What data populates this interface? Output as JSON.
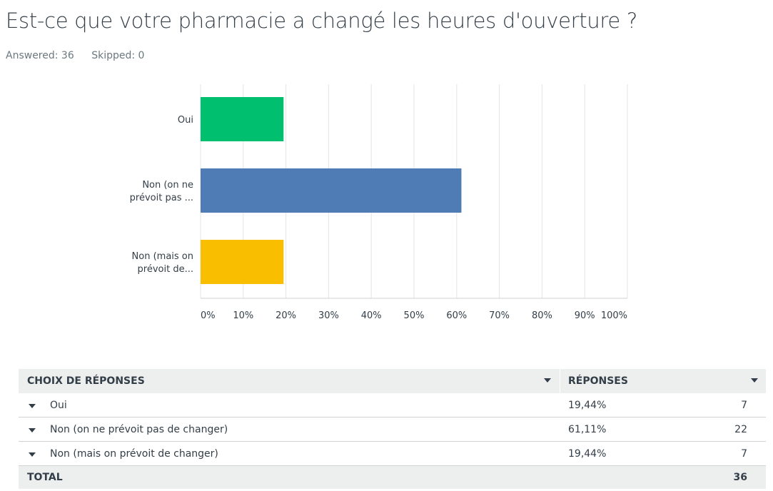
{
  "question": {
    "title": "Est-ce que votre pharmacie a changé les heures d'ouverture ?",
    "answered": "Answered: 36",
    "skipped": "Skipped: 0"
  },
  "chart_data": {
    "type": "bar",
    "orientation": "horizontal",
    "categories": [
      "Oui",
      "Non (on ne prévoit pas ...",
      "Non (mais on prévoit de..."
    ],
    "category_lines": [
      [
        "Oui"
      ],
      [
        "Non (on ne",
        "prévoit pas ..."
      ],
      [
        "Non (mais on",
        "prévoit de..."
      ]
    ],
    "values": [
      19.44,
      61.11,
      19.44
    ],
    "colors": [
      "#00bf6f",
      "#507cb6",
      "#f9be00"
    ],
    "xlim": [
      0,
      100
    ],
    "xticks": [
      "0%",
      "10%",
      "20%",
      "30%",
      "40%",
      "50%",
      "60%",
      "70%",
      "80%",
      "90%",
      "100%"
    ],
    "grid": true,
    "title": "",
    "xlabel": "",
    "ylabel": ""
  },
  "table": {
    "header_choice": "CHOIX DE RÉPONSES",
    "header_responses": "RÉPONSES",
    "rows": [
      {
        "label": "Oui",
        "percent": "19,44%",
        "count": "7"
      },
      {
        "label": "Non (on ne prévoit pas de changer)",
        "percent": "61,11%",
        "count": "22"
      },
      {
        "label": "Non (mais on prévoit de changer)",
        "percent": "19,44%",
        "count": "7"
      }
    ],
    "total_label": "TOTAL",
    "total_count": "36"
  }
}
